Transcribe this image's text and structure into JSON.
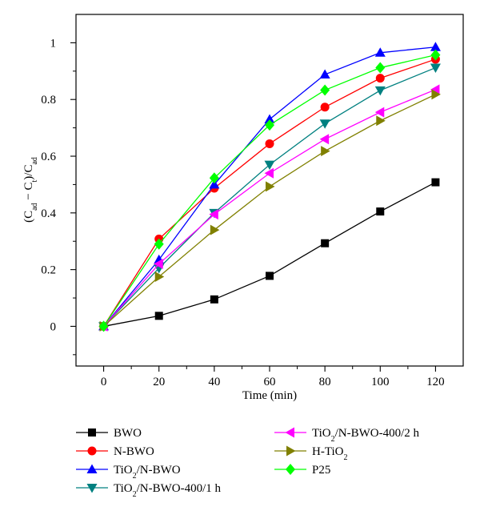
{
  "chart_data": {
    "type": "line",
    "title": "",
    "xlabel": "Time (min)",
    "ylabel": {
      "parts": [
        {
          "t": "(C"
        },
        {
          "t": "ad",
          "sub": true
        },
        {
          "t": " − C"
        },
        {
          "t": "t",
          "sub": true
        },
        {
          "t": ")/C"
        },
        {
          "t": "ad",
          "sub": true
        }
      ]
    },
    "xlim": [
      -10,
      130
    ],
    "ylim": [
      -0.14,
      1.1
    ],
    "xticks": [
      0,
      20,
      40,
      60,
      80,
      100,
      120
    ],
    "yticks": [
      0,
      0.2,
      0.4,
      0.6,
      0.8,
      1
    ],
    "ytick_labels": [
      "0",
      "0.2",
      "0.4",
      "0.6",
      "0.8",
      "1"
    ],
    "grid": false,
    "legend_position": "bottom",
    "x": [
      0,
      20,
      40,
      60,
      80,
      100,
      120
    ],
    "series": [
      {
        "name": "BWO",
        "color": "#000000",
        "marker": "square",
        "values": [
          0.0,
          0.037,
          0.095,
          0.178,
          0.293,
          0.405,
          0.508
        ]
      },
      {
        "name": "N-BWO",
        "color": "#ff0000",
        "marker": "circle",
        "values": [
          0.0,
          0.308,
          0.487,
          0.644,
          0.773,
          0.875,
          0.942
        ]
      },
      {
        "name": "TiO2/N-BWO",
        "color": "#0000ff",
        "marker": "triangle-up",
        "label_parts": [
          {
            "t": "TiO"
          },
          {
            "t": "2",
            "sub": true
          },
          {
            "t": "/N-BWO"
          }
        ],
        "values": [
          0.0,
          0.235,
          0.5,
          0.73,
          0.888,
          0.965,
          0.985
        ]
      },
      {
        "name": "TiO2/N-BWO-400/1 h",
        "color": "#008080",
        "marker": "triangle-down",
        "label_parts": [
          {
            "t": "TiO"
          },
          {
            "t": "2",
            "sub": true
          },
          {
            "t": "/N-BWO-400/1 h"
          }
        ],
        "values": [
          0.0,
          0.205,
          0.4,
          0.57,
          0.715,
          0.832,
          0.912
        ]
      },
      {
        "name": "TiO2/N-BWO-400/2 h",
        "color": "#ff00ff",
        "marker": "triangle-left",
        "label_parts": [
          {
            "t": "TiO"
          },
          {
            "t": "2",
            "sub": true
          },
          {
            "t": "/N-BWO-400/2 h"
          }
        ],
        "values": [
          0.0,
          0.22,
          0.395,
          0.54,
          0.66,
          0.755,
          0.835
        ]
      },
      {
        "name": "H-TiO2",
        "color": "#808000",
        "marker": "triangle-right",
        "label_parts": [
          {
            "t": "H-TiO"
          },
          {
            "t": "2",
            "sub": true
          }
        ],
        "values": [
          0.0,
          0.175,
          0.34,
          0.493,
          0.618,
          0.725,
          0.818
        ]
      },
      {
        "name": "P25",
        "color": "#00ff00",
        "marker": "diamond",
        "values": [
          0.0,
          0.29,
          0.523,
          0.71,
          0.833,
          0.912,
          0.957
        ]
      }
    ]
  }
}
